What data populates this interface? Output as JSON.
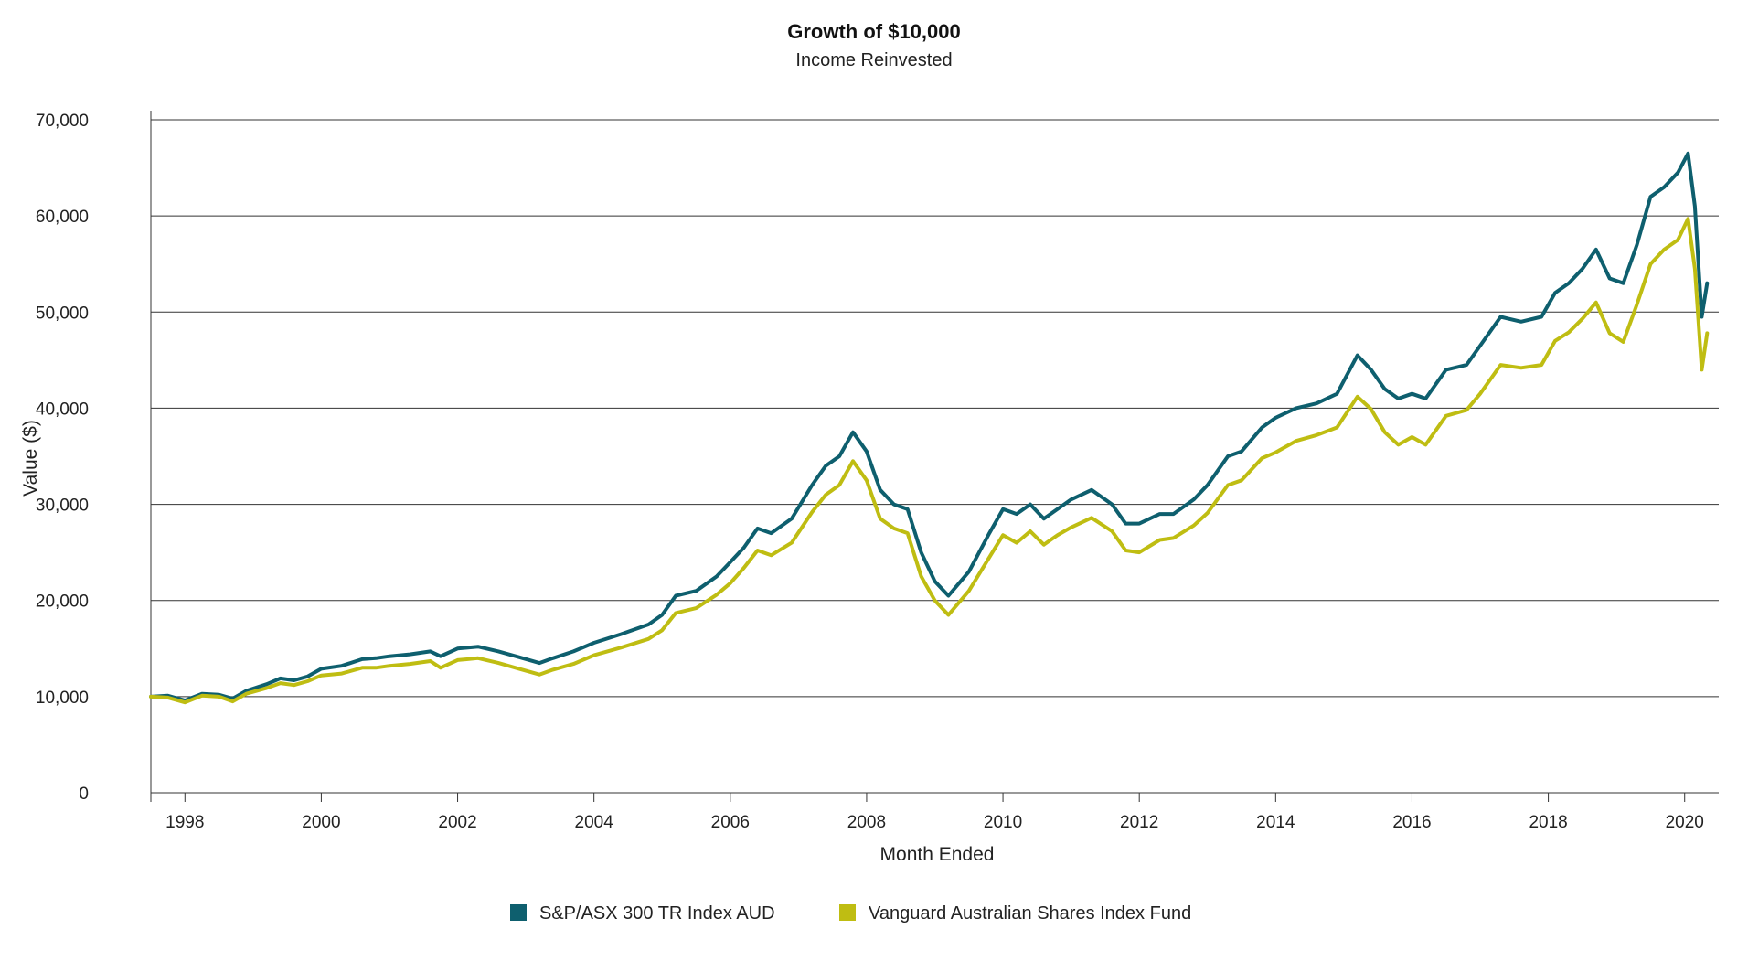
{
  "chart_data": {
    "type": "line",
    "title": "Growth of $10,000",
    "subtitle": "Income Reinvested",
    "xlabel": "Month Ended",
    "ylabel": "Value ($)",
    "xlim": [
      1997.5,
      2020.5
    ],
    "ylim": [
      0,
      70000
    ],
    "x_ticks": [
      1998,
      2000,
      2002,
      2004,
      2006,
      2008,
      2010,
      2012,
      2014,
      2016,
      2018,
      2020
    ],
    "x_tick_labels": [
      "1998",
      "2000",
      "2002",
      "2004",
      "2006",
      "2008",
      "2010",
      "2012",
      "2014",
      "2016",
      "2018",
      "2020"
    ],
    "y_ticks": [
      0,
      10000,
      20000,
      30000,
      40000,
      50000,
      60000,
      70000
    ],
    "y_tick_labels": [
      "0",
      "10,000",
      "20,000",
      "30,000",
      "40,000",
      "50,000",
      "60,000",
      "70,000"
    ],
    "grid": "horizontal",
    "legend_position": "bottom-center",
    "series": [
      {
        "name": "S&P/ASX 300 TR Index AUD",
        "color": "#0e5f6e",
        "x": [
          1997.5,
          1997.75,
          1998.0,
          1998.25,
          1998.5,
          1998.7,
          1998.9,
          1999.2,
          1999.4,
          1999.6,
          1999.8,
          2000.0,
          2000.3,
          2000.6,
          2000.8,
          2001.0,
          2001.3,
          2001.6,
          2001.75,
          2002.0,
          2002.3,
          2002.6,
          2002.9,
          2003.2,
          2003.4,
          2003.7,
          2004.0,
          2004.4,
          2004.8,
          2005.0,
          2005.2,
          2005.5,
          2005.8,
          2006.0,
          2006.2,
          2006.4,
          2006.6,
          2006.9,
          2007.2,
          2007.4,
          2007.6,
          2007.8,
          2008.0,
          2008.2,
          2008.4,
          2008.6,
          2008.8,
          2009.0,
          2009.2,
          2009.5,
          2009.8,
          2010.0,
          2010.2,
          2010.4,
          2010.6,
          2010.8,
          2011.0,
          2011.3,
          2011.6,
          2011.8,
          2012.0,
          2012.3,
          2012.5,
          2012.8,
          2013.0,
          2013.3,
          2013.5,
          2013.8,
          2014.0,
          2014.3,
          2014.6,
          2014.9,
          2015.2,
          2015.4,
          2015.6,
          2015.8,
          2016.0,
          2016.2,
          2016.5,
          2016.8,
          2017.0,
          2017.3,
          2017.6,
          2017.9,
          2018.1,
          2018.3,
          2018.5,
          2018.7,
          2018.9,
          2019.1,
          2019.3,
          2019.5,
          2019.7,
          2019.9,
          2020.05,
          2020.15,
          2020.25,
          2020.33
        ],
        "values": [
          10000,
          10100,
          9600,
          10300,
          10200,
          9800,
          10600,
          11300,
          11900,
          11700,
          12100,
          12900,
          13200,
          13900,
          14000,
          14200,
          14400,
          14700,
          14200,
          15000,
          15200,
          14700,
          14100,
          13500,
          14000,
          14700,
          15600,
          16500,
          17500,
          18500,
          20500,
          21000,
          22500,
          24000,
          25500,
          27500,
          27000,
          28500,
          32000,
          34000,
          35000,
          37500,
          35500,
          31500,
          30000,
          29500,
          25000,
          22000,
          20500,
          23000,
          27000,
          29500,
          29000,
          30000,
          28500,
          29500,
          30500,
          31500,
          30000,
          28000,
          28000,
          29000,
          29000,
          30500,
          32000,
          35000,
          35500,
          38000,
          39000,
          40000,
          40500,
          41500,
          45500,
          44000,
          42000,
          41000,
          41500,
          41000,
          44000,
          44500,
          46500,
          49500,
          49000,
          49500,
          52000,
          53000,
          54500,
          56500,
          53500,
          53000,
          57000,
          62000,
          63000,
          64500,
          66500,
          61000,
          49500,
          53000
        ]
      },
      {
        "name": "Vanguard Australian Shares Index Fund",
        "color": "#bfbd12",
        "x": [
          1997.5,
          1997.75,
          1998.0,
          1998.25,
          1998.5,
          1998.7,
          1998.9,
          1999.2,
          1999.4,
          1999.6,
          1999.8,
          2000.0,
          2000.3,
          2000.6,
          2000.8,
          2001.0,
          2001.3,
          2001.6,
          2001.75,
          2002.0,
          2002.3,
          2002.6,
          2002.9,
          2003.2,
          2003.4,
          2003.7,
          2004.0,
          2004.4,
          2004.8,
          2005.0,
          2005.2,
          2005.5,
          2005.8,
          2006.0,
          2006.2,
          2006.4,
          2006.6,
          2006.9,
          2007.2,
          2007.4,
          2007.6,
          2007.8,
          2008.0,
          2008.2,
          2008.4,
          2008.6,
          2008.8,
          2009.0,
          2009.2,
          2009.5,
          2009.8,
          2010.0,
          2010.2,
          2010.4,
          2010.6,
          2010.8,
          2011.0,
          2011.3,
          2011.6,
          2011.8,
          2012.0,
          2012.3,
          2012.5,
          2012.8,
          2013.0,
          2013.3,
          2013.5,
          2013.8,
          2014.0,
          2014.3,
          2014.6,
          2014.9,
          2015.2,
          2015.4,
          2015.6,
          2015.8,
          2016.0,
          2016.2,
          2016.5,
          2016.8,
          2017.0,
          2017.3,
          2017.6,
          2017.9,
          2018.1,
          2018.3,
          2018.5,
          2018.7,
          2018.9,
          2019.1,
          2019.3,
          2019.5,
          2019.7,
          2019.9,
          2020.05,
          2020.15,
          2020.25,
          2020.33
        ],
        "values": [
          10000,
          9900,
          9400,
          10100,
          10000,
          9500,
          10300,
          10900,
          11400,
          11200,
          11600,
          12200,
          12400,
          13000,
          13000,
          13200,
          13400,
          13700,
          13000,
          13800,
          14000,
          13500,
          12900,
          12300,
          12800,
          13400,
          14300,
          15100,
          16000,
          16900,
          18700,
          19200,
          20600,
          21800,
          23400,
          25200,
          24700,
          26000,
          29200,
          31000,
          32000,
          34500,
          32500,
          28500,
          27500,
          27000,
          22500,
          20000,
          18500,
          21000,
          24500,
          26800,
          26000,
          27200,
          25800,
          26800,
          27600,
          28600,
          27200,
          25200,
          25000,
          26300,
          26500,
          27800,
          29100,
          32000,
          32500,
          34800,
          35400,
          36600,
          37200,
          38000,
          41200,
          39900,
          37500,
          36200,
          37000,
          36200,
          39200,
          39800,
          41500,
          44500,
          44200,
          44500,
          47000,
          47900,
          49300,
          51000,
          47800,
          46900,
          50800,
          55000,
          56500,
          57500,
          59700,
          54500,
          44000,
          47800
        ]
      }
    ]
  }
}
